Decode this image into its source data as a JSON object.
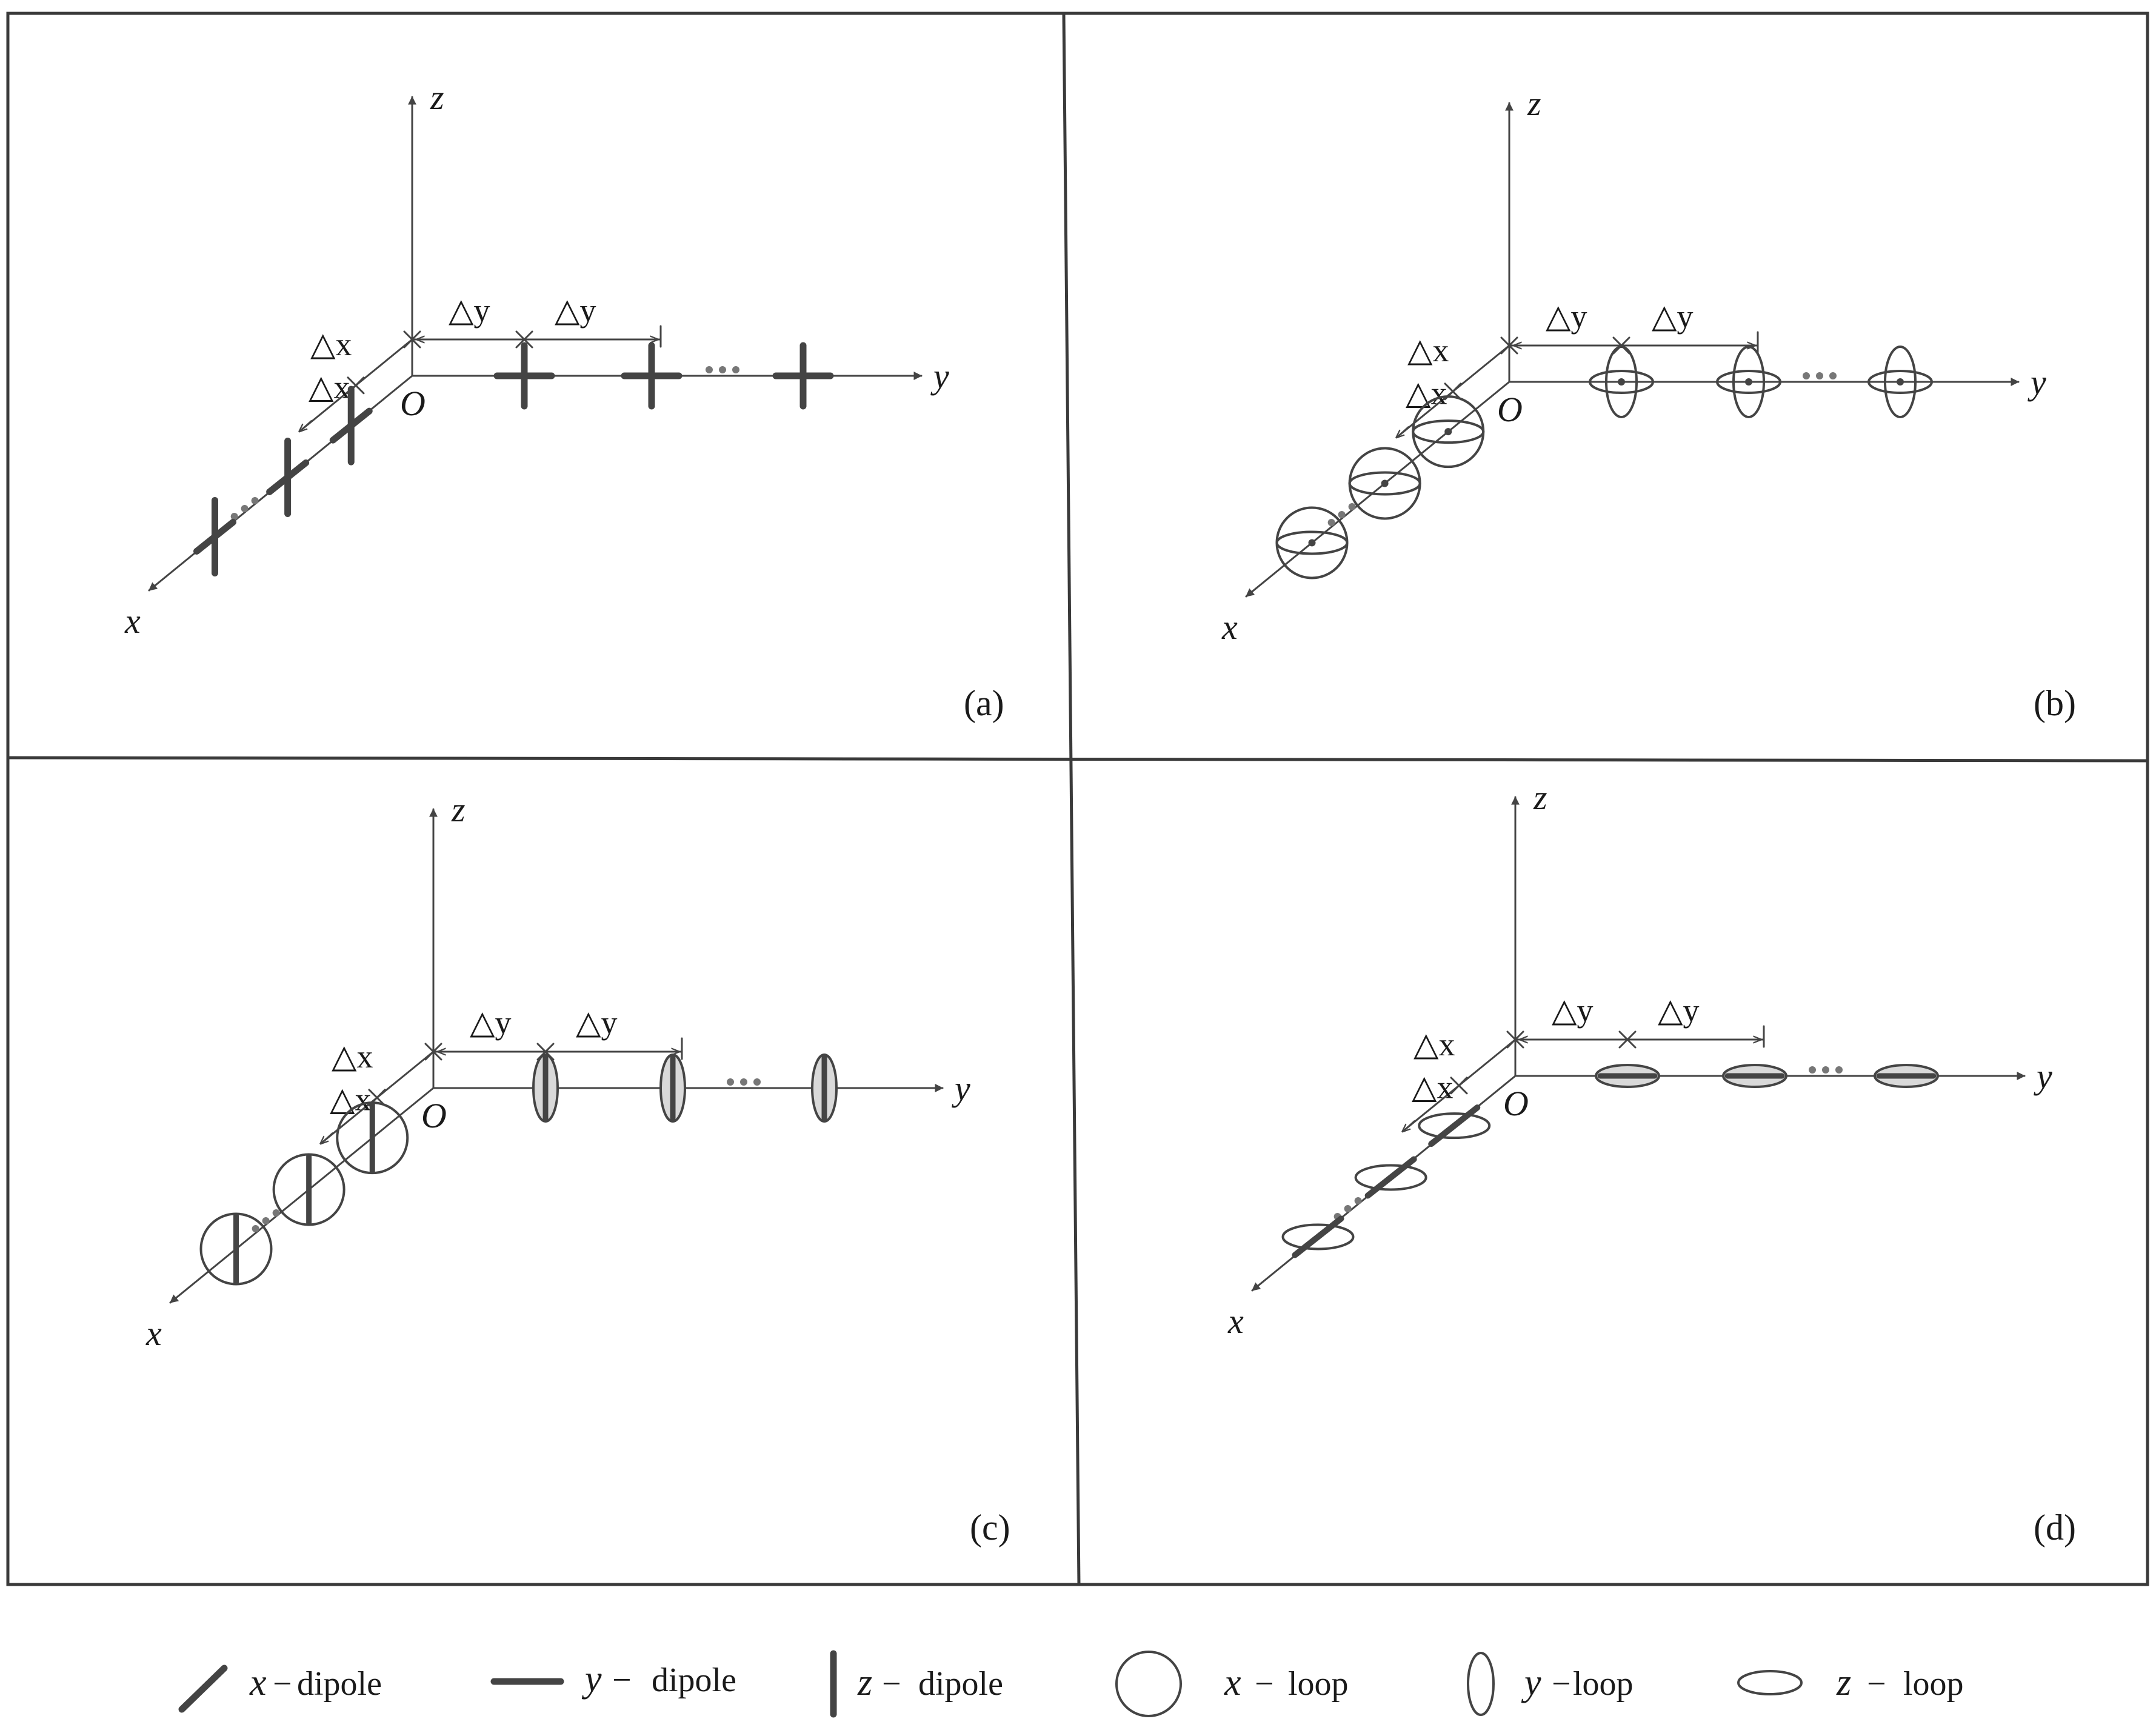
{
  "colors": {
    "line": "#444444",
    "text": "#1a1a1a",
    "loop_fill": "#d9d9d9"
  },
  "axis_labels": {
    "x": "x",
    "y": "y",
    "z": "z",
    "origin": "O"
  },
  "spacing_labels": {
    "dx": "△x",
    "dy": "△y"
  },
  "ellipsis": "···",
  "panels": [
    {
      "label": "(a)",
      "element": "dipole",
      "x_axis_items": "z-dipole over x-dipole",
      "y_axis_items": "z-dipole over y-dipole"
    },
    {
      "label": "(b)",
      "element": "loop",
      "x_axis_items": "x-loop with z-loop",
      "y_axis_items": "y-loop with z-loop"
    },
    {
      "label": "(c)",
      "element": "loop+dipole",
      "x_axis_items": "x-loop with z-dipole",
      "y_axis_items": "y-loop with z-dipole"
    },
    {
      "label": "(d)",
      "element": "loop+dipole",
      "x_axis_items": "z-loop with x-dipole",
      "y_axis_items": "z-loop with y-dipole"
    }
  ],
  "legend": [
    {
      "var": "x",
      "sep": "−",
      "text": "dipole",
      "icon": "x-dipole-icon"
    },
    {
      "var": "y",
      "sep": "−",
      "text": "dipole",
      "icon": "y-dipole-icon"
    },
    {
      "var": "z",
      "sep": "−",
      "text": "dipole",
      "icon": "z-dipole-icon"
    },
    {
      "var": "x",
      "sep": "−",
      "text": "loop",
      "icon": "x-loop-icon"
    },
    {
      "var": "y",
      "sep": "−",
      "text": "loop",
      "icon": "y-loop-icon"
    },
    {
      "var": "z",
      "sep": "−",
      "text": "loop",
      "icon": "z-loop-icon"
    }
  ]
}
